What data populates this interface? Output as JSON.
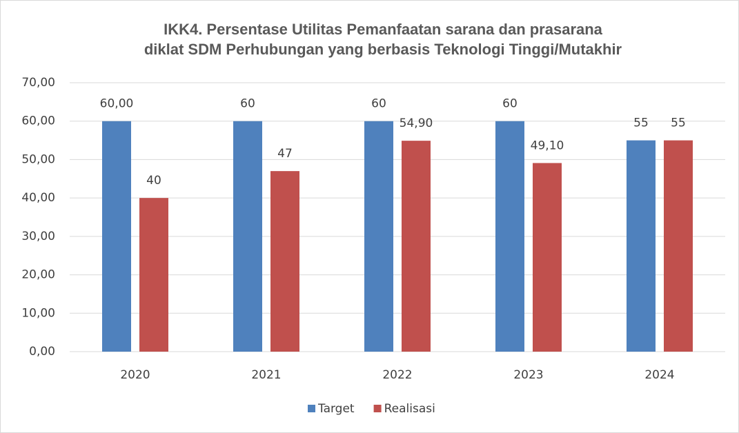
{
  "chart_data": {
    "type": "bar",
    "title": [
      "IKK4. Persentase Utilitas Pemanfaatan sarana dan prasarana",
      "diklat SDM Perhubungan yang berbasis Teknologi Tinggi/Mutakhir"
    ],
    "categories": [
      "2020",
      "2021",
      "2022",
      "2023",
      "2024"
    ],
    "series": [
      {
        "name": "Target",
        "color": "#4f81bd",
        "values": [
          60,
          60,
          60,
          60,
          55
        ],
        "value_labels": [
          "60,00",
          "60",
          "60",
          "60",
          "55"
        ]
      },
      {
        "name": "Realisasi",
        "color": "#c0504d",
        "values": [
          40,
          47,
          54.9,
          49.1,
          55
        ],
        "value_labels": [
          "40",
          "47",
          "54,90",
          "49,10",
          "55"
        ]
      }
    ],
    "ylim": [
      0,
      70
    ],
    "yticks": [
      {
        "value": 0,
        "label": "0,00"
      },
      {
        "value": 10,
        "label": "10,00"
      },
      {
        "value": 20,
        "label": "20,00"
      },
      {
        "value": 30,
        "label": "30,00"
      },
      {
        "value": 40,
        "label": "40,00"
      },
      {
        "value": 50,
        "label": "50,00"
      },
      {
        "value": 60,
        "label": "60,00"
      },
      {
        "value": 70,
        "label": "70,00"
      }
    ],
    "grid": true,
    "legend": "bottom"
  }
}
